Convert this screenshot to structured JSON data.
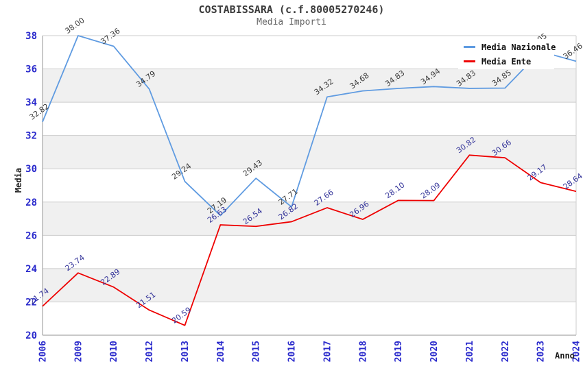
{
  "chart_data": {
    "type": "line",
    "title": "COSTABISSARA (c.f.80005270246)",
    "subtitle": "Media Importi",
    "xlabel": "Anno",
    "ylabel": "Media",
    "ylim": [
      20,
      38
    ],
    "ytick_step": 2,
    "grid": "horizontal-bands",
    "legend_position": "top-right-inside",
    "categories": [
      "2006",
      "2009",
      "2010",
      "2012",
      "2013",
      "2014",
      "2015",
      "2016",
      "2017",
      "2018",
      "2019",
      "2020",
      "2021",
      "2022",
      "2023",
      "2024"
    ],
    "series": [
      {
        "name": "Media Nazionale",
        "color": "#5f9be1",
        "label_color": "#3a3a3a",
        "values": [
          32.82,
          38.0,
          37.36,
          34.79,
          29.24,
          27.19,
          29.43,
          27.71,
          34.32,
          34.68,
          34.83,
          34.94,
          34.83,
          34.85,
          37.05,
          36.46
        ]
      },
      {
        "name": "Media Ente",
        "color": "#ee0000",
        "label_color": "#333399",
        "values": [
          21.74,
          23.74,
          22.89,
          21.51,
          20.59,
          26.63,
          26.54,
          26.82,
          27.66,
          26.96,
          28.1,
          28.09,
          30.82,
          30.66,
          29.17,
          28.64
        ]
      }
    ],
    "colors": {
      "tick_label": "#2a2acc",
      "grid_line": "#cccccc",
      "band_fill": "#f0f0f0",
      "axis_line": "#a6a6a6",
      "title": "#3c3c3c",
      "subtitle": "#666666"
    }
  }
}
